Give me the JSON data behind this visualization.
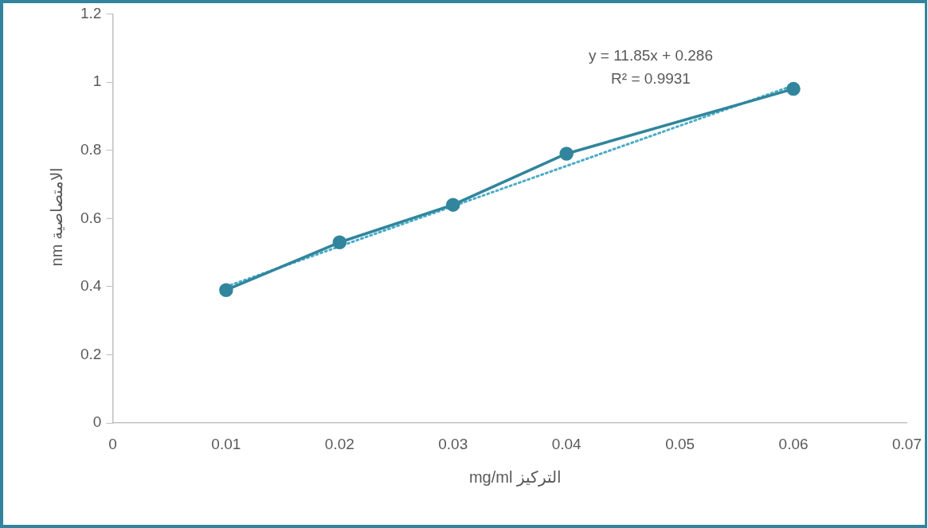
{
  "chart_data": {
    "type": "line",
    "xlabel": "التركيز mg/ml",
    "ylabel": "الامتصاصية nm",
    "annotations": [
      "y = 11.85x + 0.286",
      "R² = 0.9931"
    ],
    "series": [
      {
        "x": [
          0.01,
          0.02,
          0.03,
          0.04,
          0.06
        ],
        "values": [
          0.39,
          0.53,
          0.64,
          0.79,
          0.98
        ],
        "color": "#31859c",
        "marker": "circle",
        "line_style": "solid"
      },
      {
        "type": "line",
        "x": [
          0.01,
          0.06
        ],
        "values": [
          0.4,
          0.99
        ],
        "color": "#4bacc6",
        "marker": "none",
        "line_style": "dotted"
      }
    ],
    "xlim": [
      0,
      0.07
    ],
    "xticks": [
      0,
      0.01,
      0.02,
      0.03,
      0.04,
      0.05,
      0.06,
      0.07
    ],
    "ylim": [
      0,
      1.2
    ],
    "yticks": [
      0,
      0.2,
      0.4,
      0.6,
      0.8,
      1,
      1.2
    ],
    "grid": false,
    "legend": false
  }
}
